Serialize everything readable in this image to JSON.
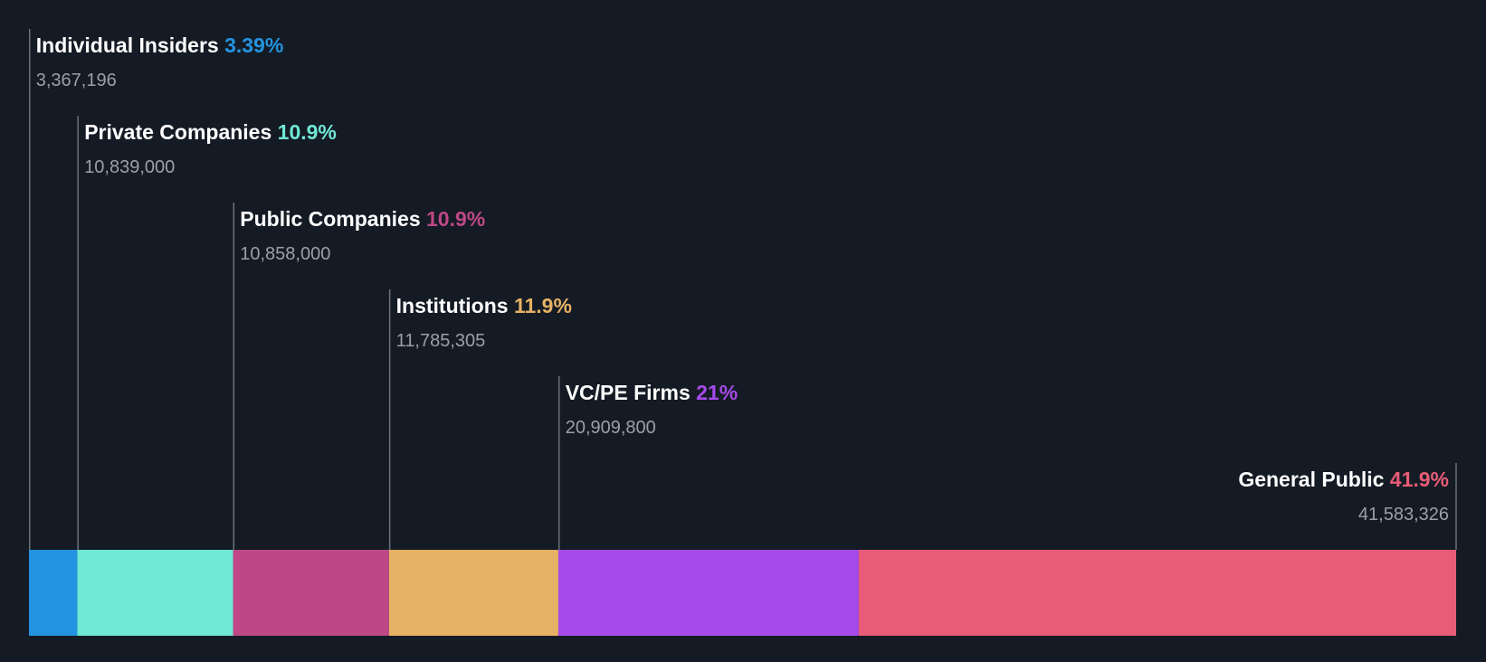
{
  "chart_data": {
    "type": "bar",
    "orientation": "horizontal-stacked",
    "categories": [
      "Individual Insiders",
      "Private Companies",
      "Public Companies",
      "Institutions",
      "VC/PE Firms",
      "General Public"
    ],
    "percent_labels": [
      "3.39%",
      "10.9%",
      "10.9%",
      "11.9%",
      "21%",
      "41.9%"
    ],
    "values": [
      3.39,
      10.9,
      10.9,
      11.9,
      21,
      41.9
    ],
    "shares": [
      "3,367,196",
      "10,839,000",
      "10,858,000",
      "11,785,305",
      "20,909,800",
      "41,583,326"
    ],
    "share_values": [
      3367196,
      10839000,
      10858000,
      11785305,
      20909800,
      41583326
    ],
    "colors": [
      "#2394e1",
      "#6fe8d6",
      "#be4887",
      "#e6b265",
      "#a64aea",
      "#e85c77"
    ],
    "grid": false,
    "legend": "none"
  }
}
